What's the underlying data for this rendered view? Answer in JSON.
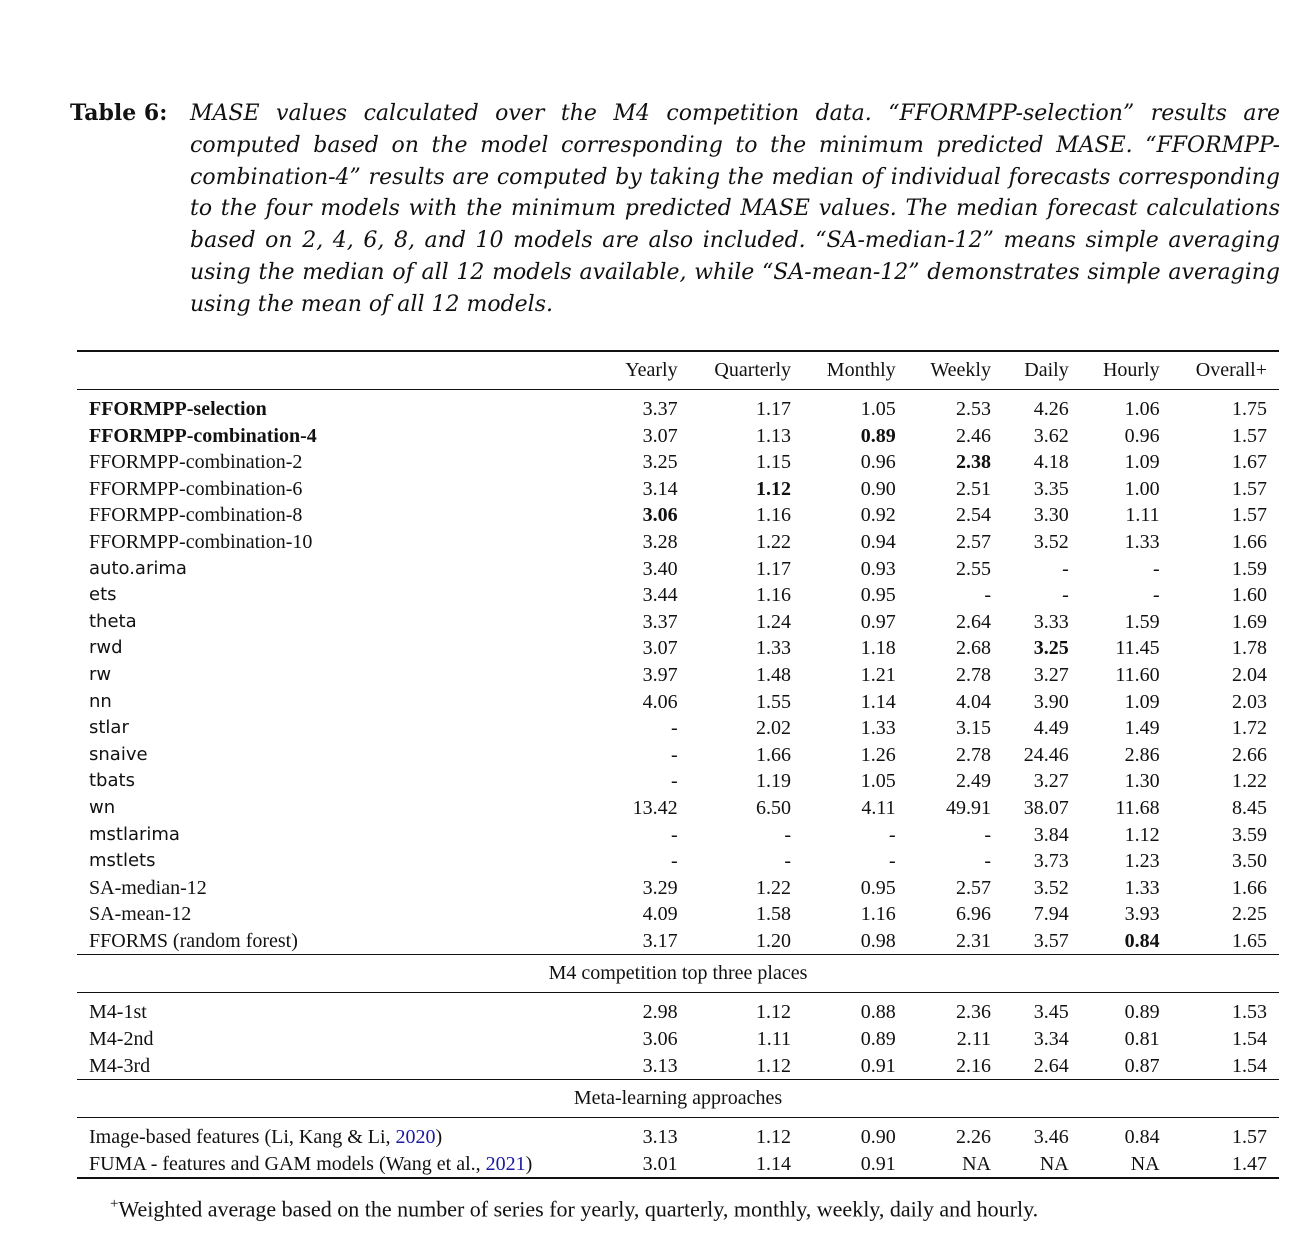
{
  "caption": {
    "label": "Table 6:",
    "text": "MASE values calculated over the M4 competition data. “FFORMPP-selection” results are computed based on the model corresponding to the minimum predicted MASE. “FFORMPP-combination-4” results are computed by taking the median of individual forecasts corresponding to the four models with the minimum predicted MASE values. The median forecast calculations based on 2, 4, 6, 8, and 10 models are also included. “SA-median-12” means simple averaging using the median of all 12 models available, while “SA-mean-12” demonstrates simple averaging using the mean of all 12 models."
  },
  "columns": [
    "",
    "Yearly",
    "Quarterly",
    "Monthly",
    "Weekly",
    "Daily",
    "Hourly",
    "Overall+"
  ],
  "rows": [
    {
      "name": "FFORMPP-selection",
      "v": [
        "3.37",
        "1.17",
        "1.05",
        "2.53",
        "4.26",
        "1.06",
        "1.75"
      ]
    },
    {
      "name": "FFORMPP-combination-4",
      "v": [
        "3.07",
        "1.13",
        "0.89",
        "2.46",
        "3.62",
        "0.96",
        "1.57"
      ]
    },
    {
      "name": "FFORMPP-combination-2",
      "v": [
        "3.25",
        "1.15",
        "0.96",
        "2.38",
        "4.18",
        "1.09",
        "1.67"
      ]
    },
    {
      "name": "FFORMPP-combination-6",
      "v": [
        "3.14",
        "1.12",
        "0.90",
        "2.51",
        "3.35",
        "1.00",
        "1.57"
      ]
    },
    {
      "name": "FFORMPP-combination-8",
      "v": [
        "3.06",
        "1.16",
        "0.92",
        "2.54",
        "3.30",
        "1.11",
        "1.57"
      ]
    },
    {
      "name": "FFORMPP-combination-10",
      "v": [
        "3.28",
        "1.22",
        "0.94",
        "2.57",
        "3.52",
        "1.33",
        "1.66"
      ]
    },
    {
      "name": "auto.arima",
      "v": [
        "3.40",
        "1.17",
        "0.93",
        "2.55",
        "-",
        "-",
        "1.59"
      ]
    },
    {
      "name": "ets",
      "v": [
        "3.44",
        "1.16",
        "0.95",
        "-",
        "-",
        "-",
        "1.60"
      ]
    },
    {
      "name": "theta",
      "v": [
        "3.37",
        "1.24",
        "0.97",
        "2.64",
        "3.33",
        "1.59",
        "1.69"
      ]
    },
    {
      "name": "rwd",
      "v": [
        "3.07",
        "1.33",
        "1.18",
        "2.68",
        "3.25",
        "11.45",
        "1.78"
      ]
    },
    {
      "name": "rw",
      "v": [
        "3.97",
        "1.48",
        "1.21",
        "2.78",
        "3.27",
        "11.60",
        "2.04"
      ]
    },
    {
      "name": "nn",
      "v": [
        "4.06",
        "1.55",
        "1.14",
        "4.04",
        "3.90",
        "1.09",
        "2.03"
      ]
    },
    {
      "name": "stlar",
      "v": [
        "-",
        "2.02",
        "1.33",
        "3.15",
        "4.49",
        "1.49",
        "1.72"
      ]
    },
    {
      "name": "snaive",
      "v": [
        "-",
        "1.66",
        "1.26",
        "2.78",
        "24.46",
        "2.86",
        "2.66"
      ]
    },
    {
      "name": "tbats",
      "v": [
        "-",
        "1.19",
        "1.05",
        "2.49",
        "3.27",
        "1.30",
        "1.22"
      ]
    },
    {
      "name": "wn",
      "v": [
        "13.42",
        "6.50",
        "4.11",
        "49.91",
        "38.07",
        "11.68",
        "8.45"
      ]
    },
    {
      "name": "mstlarima",
      "v": [
        "-",
        "-",
        "-",
        "-",
        "3.84",
        "1.12",
        "3.59"
      ]
    },
    {
      "name": "mstlets",
      "v": [
        "-",
        "-",
        "-",
        "-",
        "3.73",
        "1.23",
        "3.50"
      ]
    },
    {
      "name": "SA-median-12",
      "v": [
        "3.29",
        "1.22",
        "0.95",
        "2.57",
        "3.52",
        "1.33",
        "1.66"
      ]
    },
    {
      "name": "SA-mean-12",
      "v": [
        "4.09",
        "1.58",
        "1.16",
        "6.96",
        "7.94",
        "3.93",
        "2.25"
      ]
    },
    {
      "name": "FFORMS (random forest)",
      "v": [
        "3.17",
        "1.20",
        "0.98",
        "2.31",
        "3.57",
        "0.84",
        "1.65"
      ]
    }
  ],
  "section_m4": {
    "title": "M4 competition top three places",
    "rows": [
      {
        "name": "M4-1st",
        "v": [
          "2.98",
          "1.12",
          "0.88",
          "2.36",
          "3.45",
          "0.89",
          "1.53"
        ]
      },
      {
        "name": "M4-2nd",
        "v": [
          "3.06",
          "1.11",
          "0.89",
          "2.11",
          "3.34",
          "0.81",
          "1.54"
        ]
      },
      {
        "name": "M4-3rd",
        "v": [
          "3.13",
          "1.12",
          "0.91",
          "2.16",
          "2.64",
          "0.87",
          "1.54"
        ]
      }
    ]
  },
  "section_meta": {
    "title": "Meta-learning approaches",
    "rows": [
      {
        "name_pre": "Image-based features (Li, Kang & Li, ",
        "year": "2020",
        "name_post": ")",
        "v": [
          "3.13",
          "1.12",
          "0.90",
          "2.26",
          "3.46",
          "0.84",
          "1.57"
        ]
      },
      {
        "name_pre": "FUMA - features and GAM models (Wang et al., ",
        "year": "2021",
        "name_post": ")",
        "v": [
          "3.01",
          "1.14",
          "0.91",
          "NA",
          "NA",
          "NA",
          "1.47"
        ]
      }
    ]
  },
  "footnote": {
    "mark": "+",
    "text": "Weighted average based on the number of series for yearly, quarterly, monthly, weekly, daily and hourly."
  }
}
